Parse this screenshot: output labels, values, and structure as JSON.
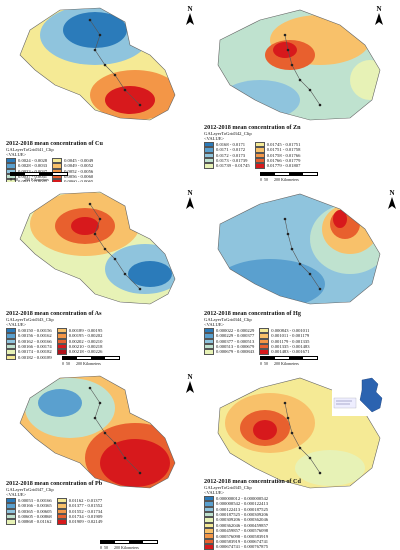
{
  "north_label": "N",
  "scale": {
    "zero": "0",
    "fifty": "50",
    "km": "200 Kilometers"
  },
  "panels": [
    {
      "id": "cu",
      "title": "2012-2018 mean concentration of Cu",
      "layer": "GALayerToGrid341_Clip",
      "value_label": "<VALUE>",
      "items": [
        {
          "range": "0.0024 - 0.0028",
          "color": "#2b7bba"
        },
        {
          "range": "0.0028 - 0.0033",
          "color": "#5aa0cf"
        },
        {
          "range": "0.0033 - 0.0037",
          "color": "#8fc4dd"
        },
        {
          "range": "0.0037 - 0.0041",
          "color": "#bfe2cf"
        },
        {
          "range": "0.0041 - 0.0045",
          "color": "#e7f2b6"
        },
        {
          "range": "0.0045 - 0.0049",
          "color": "#f5ea95"
        },
        {
          "range": "0.0049 - 0.0052",
          "color": "#f8c16a"
        },
        {
          "range": "0.0052 - 0.0056",
          "color": "#f39647"
        },
        {
          "range": "0.0056 - 0.0060",
          "color": "#e8602e"
        },
        {
          "range": "0.0060 - 0.0065",
          "color": "#d7191c"
        }
      ]
    },
    {
      "id": "zn",
      "title": "2012-2018 mean concentration of Zn",
      "layer": "GALayerToGrid342_Clip",
      "value_label": "<VALUE>",
      "items": [
        {
          "range": "0.0168 - 0.0171",
          "color": "#2b7bba"
        },
        {
          "range": "0.0171 - 0.0172",
          "color": "#5aa0cf"
        },
        {
          "range": "0.0172 - 0.0173",
          "color": "#8fc4dd"
        },
        {
          "range": "0.0173 - 0.01739",
          "color": "#bfe2cf"
        },
        {
          "range": "0.01739 - 0.01745",
          "color": "#e7f2b6"
        },
        {
          "range": "0.01745 - 0.01751",
          "color": "#f5ea95"
        },
        {
          "range": "0.01751 - 0.01758",
          "color": "#f8c16a"
        },
        {
          "range": "0.01758 - 0.01766",
          "color": "#f39647"
        },
        {
          "range": "0.01766 - 0.01779",
          "color": "#e8602e"
        },
        {
          "range": "0.01779 - 0.01807",
          "color": "#d7191c"
        }
      ]
    },
    {
      "id": "as",
      "title": "2012-2018 mean concentration of As",
      "layer": "GALayerToGrid343_Clip",
      "value_label": "<VALUE>",
      "items": [
        {
          "range": "0.00150 - 0.00156",
          "color": "#2b7bba"
        },
        {
          "range": "0.00156 - 0.00162",
          "color": "#5aa0cf"
        },
        {
          "range": "0.00162 - 0.00166",
          "color": "#8fc4dd"
        },
        {
          "range": "0.00166 - 0.00174",
          "color": "#bfe2cf"
        },
        {
          "range": "0.00174 - 0.00182",
          "color": "#e7f2b6"
        },
        {
          "range": "0.00182 - 0.00189",
          "color": "#f5ea95"
        },
        {
          "range": "0.00189 - 0.00195",
          "color": "#f8c16a"
        },
        {
          "range": "0.00195 - 0.00202",
          "color": "#f39647"
        },
        {
          "range": "0.00202 - 0.00210",
          "color": "#e8602e"
        },
        {
          "range": "0.00210 - 0.00218",
          "color": "#d7191c"
        },
        {
          "range": "0.00218 - 0.00226",
          "color": "#b0121b"
        }
      ]
    },
    {
      "id": "hg",
      "title": "2012-2018 mean concentration of Hg",
      "layer": "GALayerToGrid344_Clip",
      "value_label": "<VALUE>",
      "items": [
        {
          "range": "0.000022 - 0.000229",
          "color": "#2b7bba"
        },
        {
          "range": "0.000229 - 0.000377",
          "color": "#5aa0cf"
        },
        {
          "range": "0.000377 - 0.000513",
          "color": "#8fc4dd"
        },
        {
          "range": "0.000513 - 0.000679",
          "color": "#bfe2cf"
        },
        {
          "range": "0.000679 - 0.000843",
          "color": "#e7f2b6"
        },
        {
          "range": "0.000843 - 0.001011",
          "color": "#f5ea95"
        },
        {
          "range": "0.001011 - 0.001179",
          "color": "#f8c16a"
        },
        {
          "range": "0.001179 - 0.001335",
          "color": "#f39647"
        },
        {
          "range": "0.001335 - 0.001483",
          "color": "#e8602e"
        },
        {
          "range": "0.001483 - 0.001671",
          "color": "#d7191c"
        }
      ]
    },
    {
      "id": "pb",
      "title": "2012-2018 mean concentration of Pb",
      "layer": "GALayerToGrid347_Clip",
      "value_label": "<VALUE>",
      "items": [
        {
          "range": "0.00053 - 0.00166",
          "color": "#2b7bba"
        },
        {
          "range": "0.00166 - 0.00365",
          "color": "#5aa0cf"
        },
        {
          "range": "0.00365 - 0.00605",
          "color": "#8fc4dd"
        },
        {
          "range": "0.00605 - 0.00868",
          "color": "#bfe2cf"
        },
        {
          "range": "0.00868 - 0.01162",
          "color": "#e7f2b6"
        },
        {
          "range": "0.01162 - 0.01377",
          "color": "#f5ea95"
        },
        {
          "range": "0.01377 - 0.01552",
          "color": "#f8c16a"
        },
        {
          "range": "0.01552 - 0.01734",
          "color": "#f39647"
        },
        {
          "range": "0.01734 - 0.01909",
          "color": "#e8602e"
        },
        {
          "range": "0.01909 - 0.02149",
          "color": "#d7191c"
        }
      ]
    },
    {
      "id": "cd",
      "title": "2012-2018 mean concentration of Cd",
      "layer": "GALayerToGrid345_Clip",
      "value_label": "<VALUE>",
      "items": [
        {
          "range": "0.000000012 - 0.000000542",
          "color": "#2b7bba"
        },
        {
          "range": "0.000000542 - 0.000122413",
          "color": "#5aa0cf"
        },
        {
          "range": "0.000122413 - 0.000187525",
          "color": "#8fc4dd"
        },
        {
          "range": "0.000187525 - 0.000309206",
          "color": "#bfe2cf"
        },
        {
          "range": "0.000309206 - 0.000362046",
          "color": "#e7f2b6"
        },
        {
          "range": "0.000362046 - 0.000459857",
          "color": "#f5ea95"
        },
        {
          "range": "0.000459857 - 0.000576098",
          "color": "#f8c16a"
        },
        {
          "range": "0.000576098 - 0.000583919",
          "color": "#f39647"
        },
        {
          "range": "0.000583919 - 0.000674741",
          "color": "#e8602e"
        },
        {
          "range": "0.000674741 - 0.000767875",
          "color": "#d7191c"
        }
      ]
    }
  ]
}
